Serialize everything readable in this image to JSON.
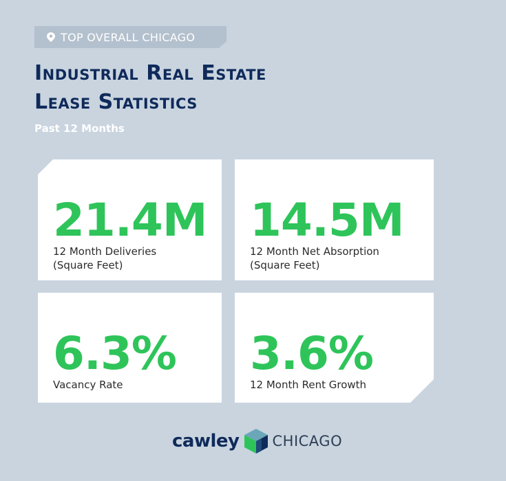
{
  "tag": {
    "icon": "location-pin-icon",
    "text": "TOP OVERALL CHICAGO"
  },
  "title": {
    "line1": "Industrial Real Estate",
    "line2": "Lease Statistics"
  },
  "subtitle": "Past 12 Months",
  "stats": [
    {
      "value": "21.4M",
      "label": "12 Month Deliveries\n(Square Feet)"
    },
    {
      "value": "14.5M",
      "label": "12 Month Net Absorption\n(Square Feet)"
    },
    {
      "value": "6.3%",
      "label": "Vacancy Rate"
    },
    {
      "value": "3.6%",
      "label": "12 Month Rent Growth"
    }
  ],
  "logo": {
    "brand": "cawley",
    "mark_icon": "cube-logo-icon",
    "city": "CHICAGO"
  },
  "colors": {
    "background": "#c9d4df",
    "title": "#0f2a5a",
    "accent_green": "#2ec45a",
    "card": "#ffffff"
  }
}
